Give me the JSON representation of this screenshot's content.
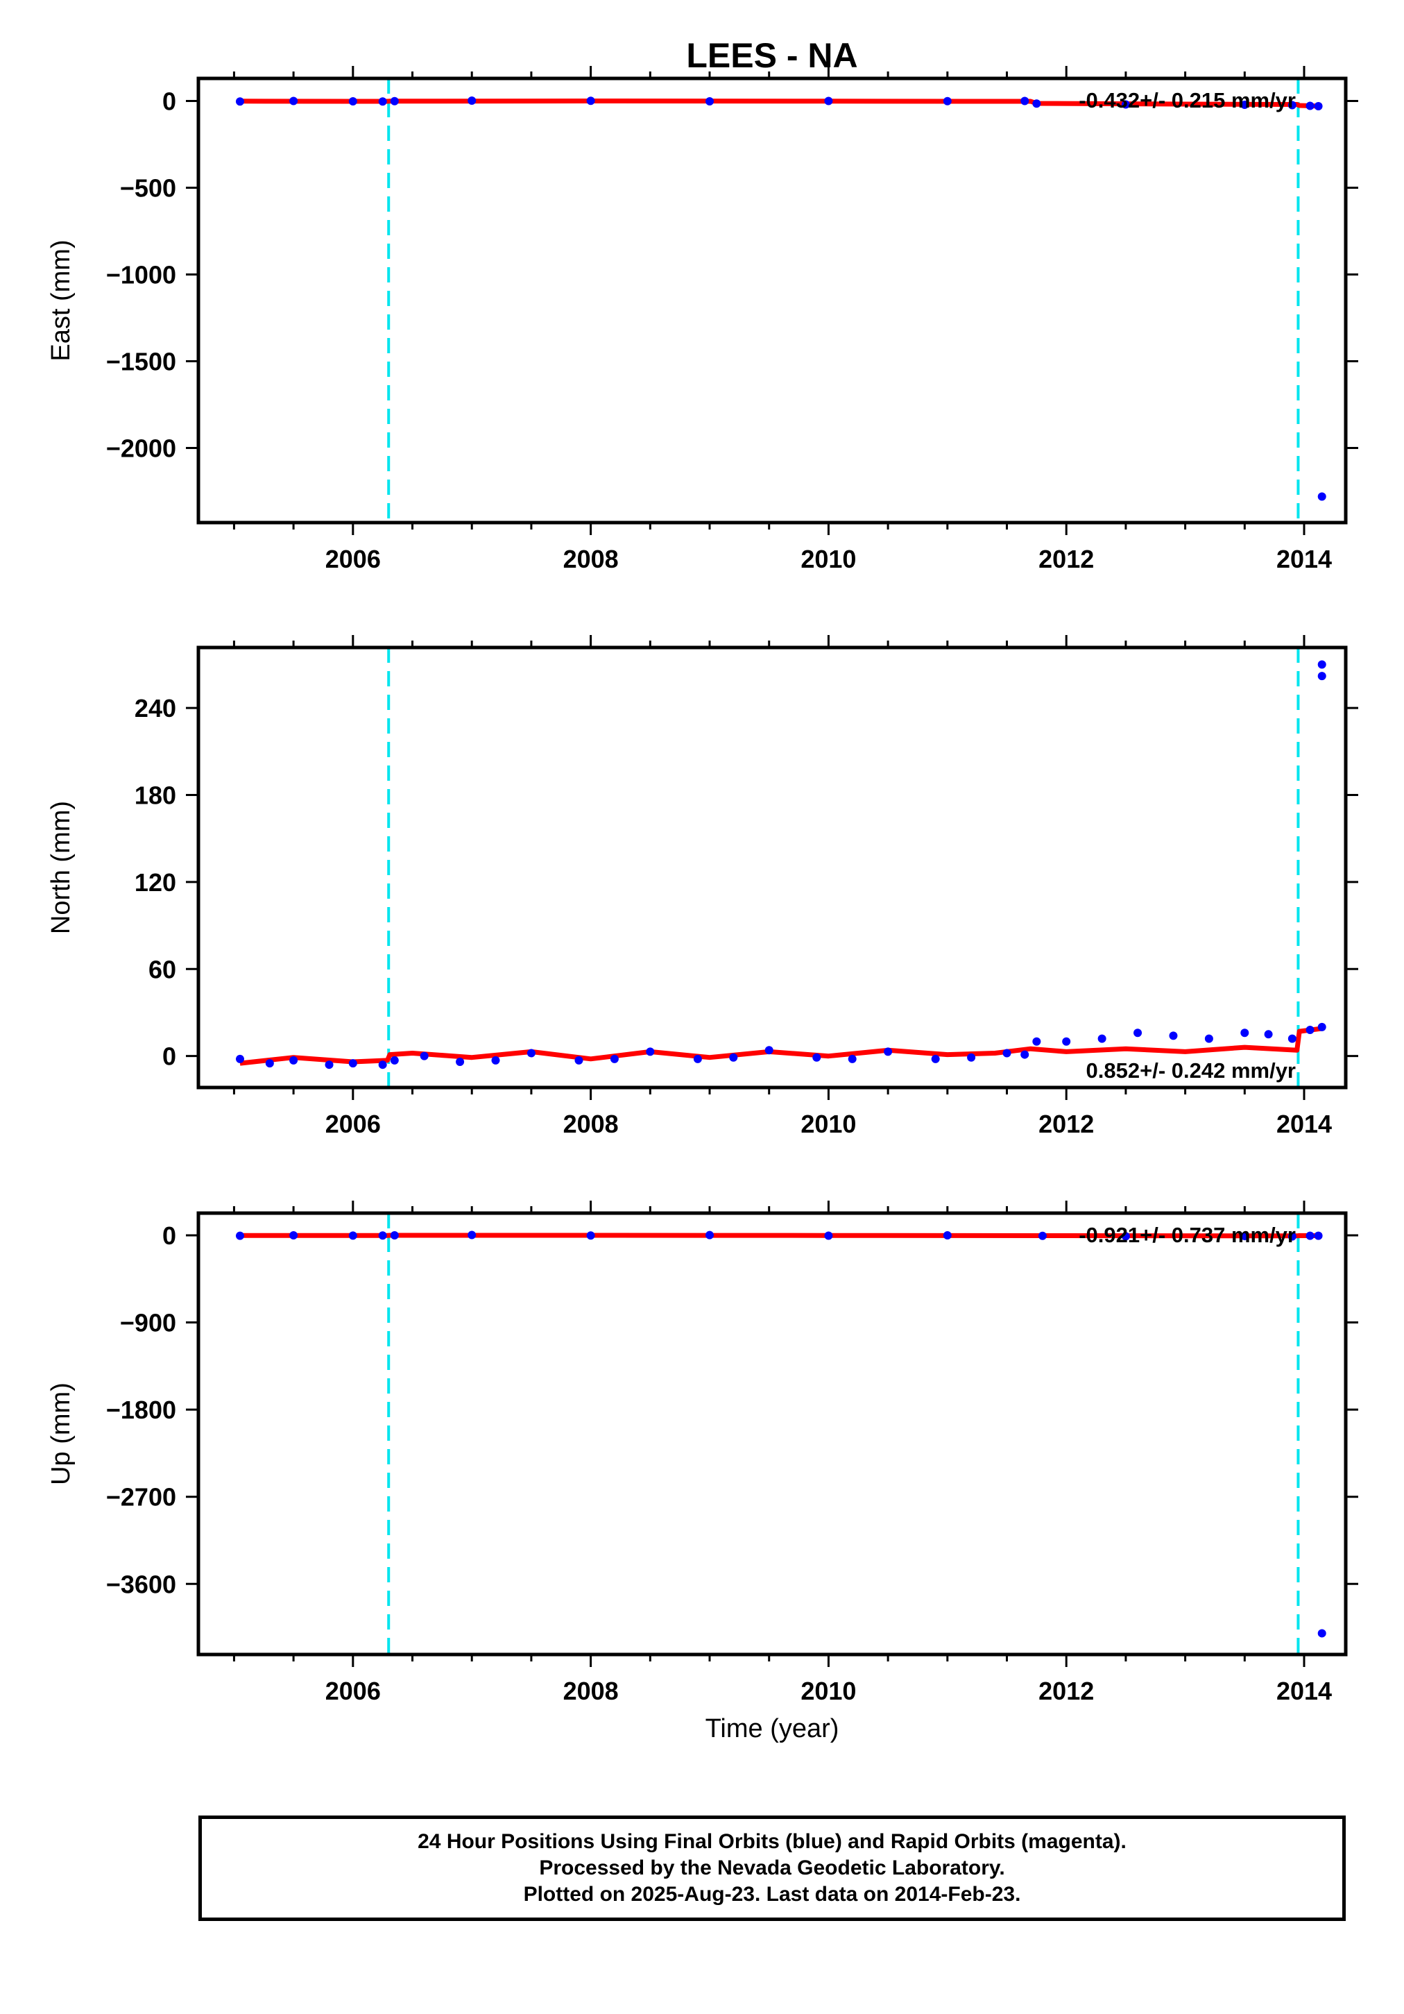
{
  "chart_data": {
    "type": "scatter",
    "title": "LEES - NA",
    "xlabel": "Time (year)",
    "xlim": [
      2004.7,
      2014.35
    ],
    "x_ticks": [
      2006,
      2008,
      2010,
      2012,
      2014
    ],
    "breaks": [
      2006.3,
      2013.95
    ],
    "colors": {
      "observed": "#0000ff",
      "model": "#ff0000",
      "break": "#00e5ee"
    },
    "panels": [
      {
        "name": "east",
        "ylabel": "East (mm)",
        "ylim": [
          -2350,
          50
        ],
        "y_ticks": [
          0,
          -500,
          -1000,
          -1500,
          -2000
        ],
        "rate_text": "-0.432+/- 0.215 mm/yr",
        "observed": [
          [
            2005.05,
            -3
          ],
          [
            2005.5,
            0
          ],
          [
            2006.0,
            -2
          ],
          [
            2006.25,
            -3
          ],
          [
            2006.35,
            -1
          ],
          [
            2007.0,
            2
          ],
          [
            2008.0,
            1
          ],
          [
            2009.0,
            -2
          ],
          [
            2010.0,
            0
          ],
          [
            2011.0,
            -1
          ],
          [
            2011.65,
            0
          ],
          [
            2011.75,
            -15
          ],
          [
            2012.5,
            -20
          ],
          [
            2013.5,
            -22
          ],
          [
            2013.9,
            -24
          ],
          [
            2014.05,
            -28
          ],
          [
            2014.12,
            -30
          ],
          [
            2014.15,
            -2280
          ]
        ],
        "model": [
          [
            2005.05,
            -1
          ],
          [
            2006.29,
            -2
          ],
          [
            2006.31,
            -1
          ],
          [
            2008.0,
            0
          ],
          [
            2010.0,
            -1
          ],
          [
            2011.7,
            -2
          ],
          [
            2011.75,
            -14
          ],
          [
            2013.0,
            -18
          ],
          [
            2013.94,
            -20
          ],
          [
            2013.96,
            -26
          ],
          [
            2014.15,
            -30
          ]
        ]
      },
      {
        "name": "north",
        "ylabel": "North (mm)",
        "ylim": [
          -15,
          275
        ],
        "y_ticks": [
          0,
          60,
          120,
          180,
          240
        ],
        "rate_text": "0.852+/- 0.242 mm/yr",
        "observed": [
          [
            2005.05,
            -2
          ],
          [
            2005.3,
            -5
          ],
          [
            2005.5,
            -3
          ],
          [
            2005.8,
            -6
          ],
          [
            2006.0,
            -5
          ],
          [
            2006.25,
            -6
          ],
          [
            2006.35,
            -3
          ],
          [
            2006.6,
            0
          ],
          [
            2006.9,
            -4
          ],
          [
            2007.2,
            -3
          ],
          [
            2007.5,
            2
          ],
          [
            2007.9,
            -3
          ],
          [
            2008.2,
            -2
          ],
          [
            2008.5,
            3
          ],
          [
            2008.9,
            -2
          ],
          [
            2009.2,
            -1
          ],
          [
            2009.5,
            4
          ],
          [
            2009.9,
            -1
          ],
          [
            2010.2,
            -2
          ],
          [
            2010.5,
            3
          ],
          [
            2010.9,
            -2
          ],
          [
            2011.2,
            -1
          ],
          [
            2011.5,
            2
          ],
          [
            2011.65,
            1
          ],
          [
            2011.75,
            10
          ],
          [
            2012.0,
            10
          ],
          [
            2012.3,
            12
          ],
          [
            2012.6,
            16
          ],
          [
            2012.9,
            14
          ],
          [
            2013.2,
            12
          ],
          [
            2013.5,
            16
          ],
          [
            2013.7,
            15
          ],
          [
            2013.9,
            12
          ],
          [
            2014.05,
            18
          ],
          [
            2014.15,
            20
          ],
          [
            2014.15,
            262
          ],
          [
            2014.15,
            270
          ]
        ],
        "model": [
          [
            2005.05,
            -5
          ],
          [
            2005.5,
            -1
          ],
          [
            2006.0,
            -4
          ],
          [
            2006.29,
            -3
          ],
          [
            2006.31,
            1
          ],
          [
            2006.5,
            2
          ],
          [
            2007.0,
            -1
          ],
          [
            2007.5,
            3
          ],
          [
            2008.0,
            -2
          ],
          [
            2008.5,
            3
          ],
          [
            2009.0,
            -1
          ],
          [
            2009.5,
            3
          ],
          [
            2010.0,
            0
          ],
          [
            2010.5,
            4
          ],
          [
            2011.0,
            1
          ],
          [
            2011.4,
            2
          ],
          [
            2011.7,
            5
          ],
          [
            2012.0,
            3
          ],
          [
            2012.5,
            5
          ],
          [
            2013.0,
            3
          ],
          [
            2013.5,
            6
          ],
          [
            2013.94,
            4
          ],
          [
            2013.96,
            17
          ],
          [
            2014.15,
            19
          ]
        ]
      },
      {
        "name": "up",
        "ylabel": "Up (mm)",
        "ylim": [
          -4200,
          100
        ],
        "y_ticks": [
          0,
          -900,
          -1800,
          -2700,
          -3600
        ],
        "rate_text": "-0.921+/- 0.737 mm/yr",
        "observed": [
          [
            2005.05,
            -5
          ],
          [
            2005.5,
            0
          ],
          [
            2006.0,
            -3
          ],
          [
            2006.25,
            -2
          ],
          [
            2006.35,
            0
          ],
          [
            2007.0,
            3
          ],
          [
            2008.0,
            -2
          ],
          [
            2009.0,
            2
          ],
          [
            2010.0,
            -4
          ],
          [
            2011.0,
            0
          ],
          [
            2011.8,
            -6
          ],
          [
            2012.5,
            -10
          ],
          [
            2013.5,
            -8
          ],
          [
            2013.9,
            -12
          ],
          [
            2014.05,
            -5
          ],
          [
            2014.12,
            -5
          ],
          [
            2014.15,
            -4110
          ]
        ],
        "model": [
          [
            2005.05,
            -2
          ],
          [
            2006.29,
            -2
          ],
          [
            2006.31,
            0
          ],
          [
            2008.0,
            0
          ],
          [
            2010.0,
            -2
          ],
          [
            2012.0,
            -4
          ],
          [
            2013.94,
            -6
          ],
          [
            2013.96,
            -3
          ],
          [
            2014.15,
            -4
          ]
        ]
      }
    ]
  },
  "footer": {
    "line1": "24 Hour Positions Using Final Orbits (blue) and Rapid Orbits (magenta).",
    "line2": "Processed by the Nevada Geodetic Laboratory.",
    "line3": "Plotted on 2025-Aug-23. Last data on 2014-Feb-23."
  }
}
